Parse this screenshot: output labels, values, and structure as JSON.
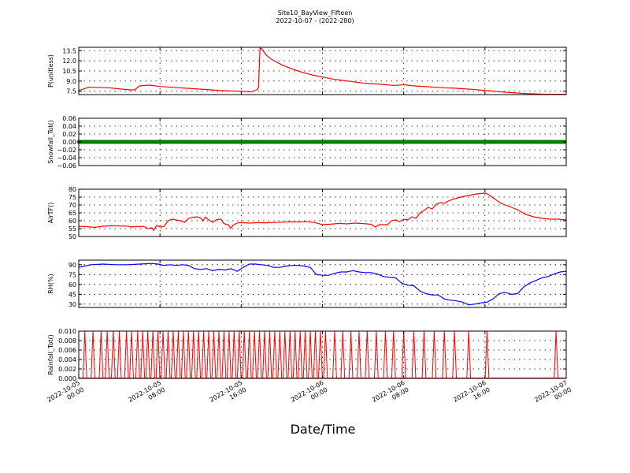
{
  "chart_data": {
    "type": "line",
    "title": "Site10_BayView_Fifteen",
    "subtitle": "2022-10-07 - (2022-280)",
    "xlabel": "Date/Time",
    "x_tick_labels": [
      [
        "2022-10-05",
        "00:00"
      ],
      [
        "2022-10-05",
        "08:00"
      ],
      [
        "2022-10-05",
        "16:00"
      ],
      [
        "2022-10-06",
        "00:00"
      ],
      [
        "2022-10-06",
        "08:00"
      ],
      [
        "2022-10-06",
        "16:00"
      ],
      [
        "2022-10-07",
        "00:00"
      ]
    ],
    "x_range_hours": [
      0,
      48
    ],
    "grid": true,
    "panels": [
      {
        "ylabel": "P(unitless)",
        "ylim": [
          7.0,
          14.0
        ],
        "yticks": [
          "7.5",
          "9.0",
          "10.5",
          "12.0",
          "13.5"
        ],
        "ytick_values": [
          7.5,
          9.0,
          10.5,
          12.0,
          13.5
        ],
        "color": "#ff0000",
        "marker": false,
        "points": [
          [
            0,
            7.6
          ],
          [
            1,
            8.1
          ],
          [
            3,
            8.0
          ],
          [
            5,
            7.7
          ],
          [
            5.5,
            7.7
          ],
          [
            6,
            8.3
          ],
          [
            7,
            8.4
          ],
          [
            8,
            8.2
          ],
          [
            10,
            8.0
          ],
          [
            12,
            7.8
          ],
          [
            14,
            7.6
          ],
          [
            16,
            7.5
          ],
          [
            17,
            7.4
          ],
          [
            17.5,
            7.7
          ],
          [
            17.7,
            8.0
          ],
          [
            17.85,
            13.9
          ],
          [
            18,
            13.8
          ],
          [
            18.5,
            12.8
          ],
          [
            19,
            12.2
          ],
          [
            20,
            11.4
          ],
          [
            21,
            10.8
          ],
          [
            22,
            10.3
          ],
          [
            23,
            9.9
          ],
          [
            24,
            9.6
          ],
          [
            25,
            9.3
          ],
          [
            26,
            9.1
          ],
          [
            27,
            8.9
          ],
          [
            28,
            8.7
          ],
          [
            29,
            8.6
          ],
          [
            30,
            8.5
          ],
          [
            31,
            8.35
          ],
          [
            32,
            8.45
          ],
          [
            33,
            8.3
          ],
          [
            34,
            8.2
          ],
          [
            35,
            8.1
          ],
          [
            36,
            8.0
          ],
          [
            37,
            7.95
          ],
          [
            38,
            7.85
          ],
          [
            39,
            7.75
          ],
          [
            40,
            7.6
          ],
          [
            41,
            7.5
          ],
          [
            42,
            7.35
          ],
          [
            43,
            7.25
          ],
          [
            44,
            7.15
          ],
          [
            45,
            7.1
          ],
          [
            46,
            7.05
          ],
          [
            47,
            7.05
          ],
          [
            48,
            7.05
          ]
        ]
      },
      {
        "ylabel": "Snowfall_Tot()",
        "ylim": [
          -0.06,
          0.06
        ],
        "yticks": [
          "−0.06",
          "−0.04",
          "−0.02",
          "0.00",
          "0.02",
          "0.04",
          "0.06"
        ],
        "ytick_values": [
          -0.06,
          -0.04,
          -0.02,
          0.0,
          0.02,
          0.04,
          0.06
        ],
        "color": "#008000",
        "marker": true,
        "points": [
          [
            0,
            0
          ],
          [
            48,
            0
          ]
        ]
      },
      {
        "ylabel": "AirTF()",
        "ylim": [
          50,
          80
        ],
        "yticks": [
          "50",
          "55",
          "60",
          "65",
          "70",
          "75",
          "80"
        ],
        "ytick_values": [
          50,
          55,
          60,
          65,
          70,
          75,
          80
        ],
        "color": "#ff0000",
        "marker": false,
        "points": [
          [
            0,
            56.5
          ],
          [
            1,
            56.2
          ],
          [
            2,
            55.8
          ],
          [
            3,
            56.5
          ],
          [
            4,
            56.8
          ],
          [
            5,
            56.7
          ],
          [
            6,
            56.6
          ],
          [
            6.5,
            56.0
          ],
          [
            7,
            56.3
          ],
          [
            8,
            56.4
          ],
          [
            8.5,
            55.0
          ],
          [
            9,
            55.6
          ],
          [
            9.2,
            54.0
          ],
          [
            9.6,
            57.0
          ],
          [
            10,
            56.0
          ],
          [
            10.5,
            56.4
          ],
          [
            11,
            60.0
          ],
          [
            11.5,
            61.0
          ],
          [
            12,
            60.5
          ],
          [
            12.5,
            60.0
          ],
          [
            13,
            59.0
          ],
          [
            13.5,
            61.5
          ],
          [
            14,
            62.0
          ],
          [
            14.5,
            62.5
          ],
          [
            15,
            61.8
          ],
          [
            15.3,
            60.0
          ],
          [
            15.6,
            62.3
          ],
          [
            16,
            60.5
          ],
          [
            16.5,
            59.0
          ],
          [
            17,
            60.8
          ],
          [
            17.5,
            61.0
          ],
          [
            17.8,
            58.5
          ],
          [
            18,
            58.0
          ],
          [
            18.4,
            57.5
          ],
          [
            18.7,
            55.2
          ],
          [
            19,
            57.2
          ],
          [
            19.5,
            58.5
          ],
          [
            20,
            58.8
          ],
          [
            21,
            58.5
          ],
          [
            22,
            58.8
          ],
          [
            23,
            58.7
          ],
          [
            24,
            58.9
          ],
          [
            25,
            59.1
          ],
          [
            26,
            59.3
          ],
          [
            27,
            59.2
          ],
          [
            28,
            59.4
          ],
          [
            29,
            58.9
          ],
          [
            30,
            57.5
          ],
          [
            31,
            57.8
          ],
          [
            32,
            58.3
          ],
          [
            33,
            58.0
          ],
          [
            34,
            58.5
          ],
          [
            35,
            58.2
          ],
          [
            36,
            57.8
          ],
          [
            36.5,
            56.0
          ],
          [
            37,
            57.5
          ],
          [
            38,
            57.5
          ],
          [
            38.5,
            60.0
          ],
          [
            39,
            60.5
          ],
          [
            39.5,
            59.5
          ],
          [
            40,
            61.0
          ],
          [
            40.5,
            60.5
          ],
          [
            41,
            62.5
          ],
          [
            41.5,
            61.5
          ],
          [
            42,
            65.0
          ],
          [
            42.5,
            66.5
          ],
          [
            43,
            68.5
          ],
          [
            43.5,
            67.5
          ],
          [
            44,
            70.5
          ],
          [
            44.5,
            71.5
          ],
          [
            45,
            71.0
          ],
          [
            45.5,
            72.5
          ],
          [
            46,
            73.5
          ],
          [
            47,
            75.0
          ],
          [
            48,
            76.0
          ],
          [
            49,
            77.0
          ],
          [
            50,
            77.5
          ],
          [
            50.5,
            76.5
          ],
          [
            51,
            74.5
          ],
          [
            52,
            71.0
          ],
          [
            53,
            69.0
          ],
          [
            54,
            67.0
          ],
          [
            55,
            64.0
          ],
          [
            56,
            62.5
          ],
          [
            57,
            61.5
          ],
          [
            58,
            61.0
          ],
          [
            59,
            61.0
          ],
          [
            60,
            60.5
          ]
        ]
      },
      {
        "ylabel": "RH(%)",
        "ylim": [
          25,
          97
        ],
        "yticks": [
          "30",
          "45",
          "60",
          "75",
          "90"
        ],
        "ytick_values": [
          30,
          45,
          60,
          75,
          90
        ],
        "color": "#0000ff",
        "marker": false,
        "points": [
          [
            0,
            86
          ],
          [
            2,
            90
          ],
          [
            4,
            91
          ],
          [
            6,
            90
          ],
          [
            8,
            90
          ],
          [
            10,
            91
          ],
          [
            12,
            92
          ],
          [
            13,
            91
          ],
          [
            14,
            89
          ],
          [
            15,
            90
          ],
          [
            16,
            89
          ],
          [
            17,
            90
          ],
          [
            18,
            89
          ],
          [
            19,
            84
          ],
          [
            20,
            83
          ],
          [
            21,
            84
          ],
          [
            22,
            81
          ],
          [
            23,
            83
          ],
          [
            24,
            82
          ],
          [
            25,
            84
          ],
          [
            26,
            80
          ],
          [
            27,
            86
          ],
          [
            28,
            91
          ],
          [
            29,
            91
          ],
          [
            30,
            90
          ],
          [
            31,
            89
          ],
          [
            32,
            86
          ],
          [
            33,
            86
          ],
          [
            34,
            88
          ],
          [
            35,
            89
          ],
          [
            36,
            89
          ],
          [
            37,
            88
          ],
          [
            38,
            86
          ],
          [
            39,
            75
          ],
          [
            40,
            74
          ],
          [
            41,
            74
          ],
          [
            42,
            77
          ],
          [
            43,
            79
          ],
          [
            44,
            79
          ],
          [
            45,
            81
          ],
          [
            46,
            79
          ],
          [
            47,
            78
          ],
          [
            48,
            78
          ],
          [
            49,
            76
          ],
          [
            50,
            72
          ],
          [
            51,
            71
          ],
          [
            52,
            70
          ],
          [
            53,
            62
          ],
          [
            54,
            59
          ],
          [
            55,
            58
          ],
          [
            56,
            50
          ],
          [
            57,
            46
          ],
          [
            58,
            44
          ],
          [
            59,
            44
          ],
          [
            60,
            38
          ],
          [
            61,
            36
          ],
          [
            62,
            35
          ],
          [
            63,
            33
          ],
          [
            64,
            29
          ],
          [
            65,
            30
          ],
          [
            66,
            32
          ],
          [
            67,
            33
          ],
          [
            68,
            38
          ],
          [
            69,
            46
          ],
          [
            70,
            48
          ],
          [
            71,
            45
          ],
          [
            72,
            46
          ],
          [
            73,
            56
          ],
          [
            74,
            62
          ],
          [
            75,
            66
          ],
          [
            76,
            70
          ],
          [
            77,
            72
          ],
          [
            78,
            76
          ],
          [
            79,
            79
          ],
          [
            80,
            80
          ]
        ]
      },
      {
        "ylabel": "Rainfall_Tot()",
        "ylim": [
          0,
          0.01
        ],
        "yticks": [
          "0.000",
          "0.002",
          "0.004",
          "0.006",
          "0.008",
          "0.010"
        ],
        "ytick_values": [
          0,
          0.002,
          0.004,
          0.006,
          0.008,
          0.01
        ],
        "color": "#ff0000",
        "marker": false,
        "spike_hours": [
          0.6,
          1.4,
          2.2,
          2.8,
          3.4,
          4.0,
          4.7,
          5.2,
          5.8,
          6.3,
          6.8,
          7.3,
          7.8,
          8.3,
          8.8,
          9.3,
          9.8,
          10.3,
          10.8,
          11.3,
          11.8,
          12.3,
          12.8,
          13.3,
          13.8,
          14.3,
          14.8,
          15.3,
          15.8,
          16.3,
          16.8,
          17.3,
          17.8,
          18.3,
          18.8,
          19.3,
          19.8,
          20.3,
          20.8,
          21.3,
          21.8,
          22.3,
          22.8,
          23.3,
          23.8,
          24.3,
          25.2,
          26.0,
          26.8,
          27.6,
          28.4,
          29.3,
          30.2,
          31.0,
          32.0,
          33.0,
          34.0,
          35.0,
          36.0,
          37.0,
          38.4,
          40.2,
          47.0
        ]
      }
    ]
  }
}
